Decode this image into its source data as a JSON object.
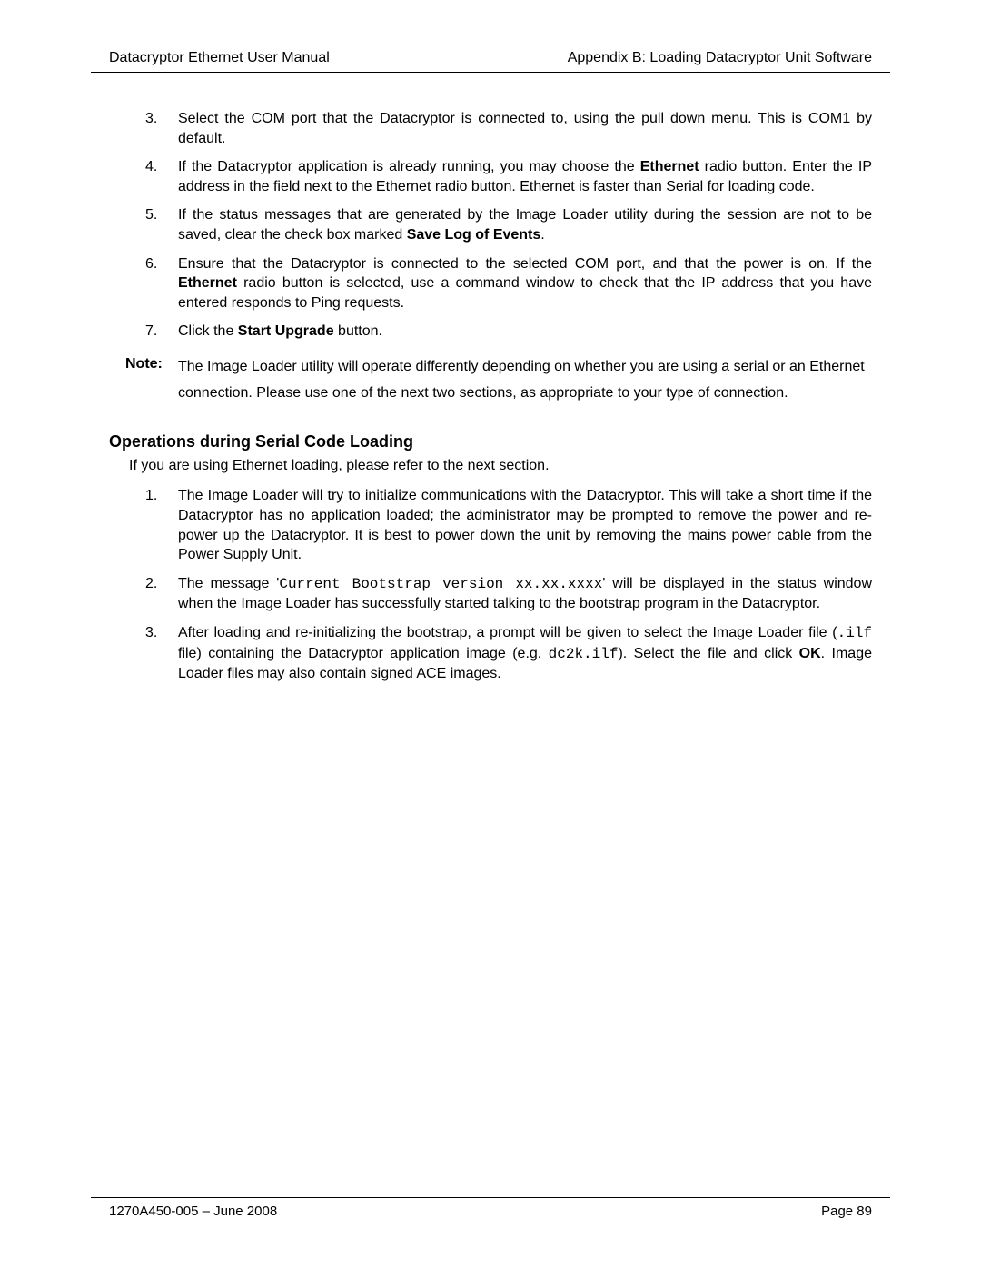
{
  "header": {
    "left": "Datacryptor Ethernet User Manual",
    "right": "Appendix B:  Loading Datacryptor Unit Software"
  },
  "steps_a": {
    "items": [
      {
        "marker": "3.",
        "segments": [
          {
            "text": "Select the COM port that the Datacryptor is connected to, using the pull down menu. This is COM1 by default."
          }
        ]
      },
      {
        "marker": "4.",
        "segments": [
          {
            "text": "If the Datacryptor application is already running, you may choose the "
          },
          {
            "text": "Ethernet",
            "bold": true
          },
          {
            "text": " radio button. Enter the IP address in the field next to the Ethernet radio button.  Ethernet is faster than Serial for loading code."
          }
        ]
      },
      {
        "marker": "5.",
        "segments": [
          {
            "text": "If the status messages that are generated by the Image Loader utility during the session are not to be saved, clear the check box marked "
          },
          {
            "text": "Save Log of Events",
            "bold": true
          },
          {
            "text": "."
          }
        ]
      },
      {
        "marker": "6.",
        "segments": [
          {
            "text": "Ensure that the Datacryptor is connected to the selected COM port, and that the power is on. If the "
          },
          {
            "text": "Ethernet",
            "bold": true
          },
          {
            "text": " radio button is selected, use a command window to check that the IP address that you have entered responds to Ping requests."
          }
        ]
      },
      {
        "marker": "7.",
        "segments": [
          {
            "text": "Click the "
          },
          {
            "text": "Start Upgrade",
            "bold": true
          },
          {
            "text": " button."
          }
        ]
      }
    ]
  },
  "note": {
    "label": "Note:",
    "body": "The Image Loader utility will operate differently depending on whether you are using a serial or an Ethernet connection. Please use one of the next two sections, as appropriate to your type of connection."
  },
  "section": {
    "heading": "Operations during Serial Code Loading",
    "intro": "If you are using Ethernet loading, please refer to the next section."
  },
  "steps_b": {
    "items": [
      {
        "marker": "1.",
        "segments": [
          {
            "text": "The Image Loader will try to initialize communications with the Datacryptor. This will take a short time if the Datacryptor has no application loaded; the administrator may be prompted to remove the power and re-power up the Datacryptor. It is best to power down the unit by removing the mains power cable from the Power Supply Unit."
          }
        ]
      },
      {
        "marker": "2.",
        "segments": [
          {
            "text": "The message '"
          },
          {
            "text": "Current Bootstrap version xx.xx.xxxx",
            "mono": true
          },
          {
            "text": "' will be displayed in the status window when the Image Loader has successfully started talking to the bootstrap program in the Datacryptor."
          }
        ]
      },
      {
        "marker": "3.",
        "segments": [
          {
            "text": "After loading and re-initializing the bootstrap, a prompt will be given to select the Image Loader file ("
          },
          {
            "text": ".ilf",
            "mono": true
          },
          {
            "text": " file) containing the Datacryptor application image (e.g. "
          },
          {
            "text": "dc2k.ilf",
            "mono": true
          },
          {
            "text": "). Select the file and click "
          },
          {
            "text": "OK",
            "bold": true
          },
          {
            "text": ". Image Loader files may also contain signed ACE images."
          }
        ]
      }
    ]
  },
  "footer": {
    "left": "1270A450-005 – June 2008",
    "right": "Page 89"
  }
}
